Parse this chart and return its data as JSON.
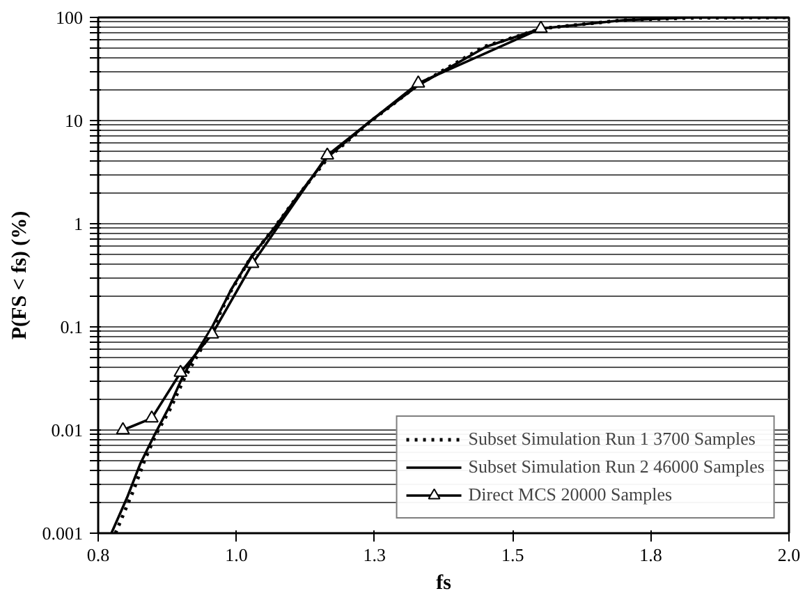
{
  "chart_data": {
    "type": "line",
    "xlabel": "fs",
    "ylabel": "P(FS < fs) (%)",
    "log": "y",
    "grid": "y",
    "legend": "bottom right",
    "xlim": [
      0.8,
      2.0
    ],
    "xticks": [
      {
        "value": 0.8,
        "label": "0.8"
      },
      {
        "value": 1.04,
        "label": "1.0"
      },
      {
        "value": 1.28,
        "label": "1.3"
      },
      {
        "value": 1.52,
        "label": "1.5"
      },
      {
        "value": 1.76,
        "label": "1.8"
      },
      {
        "value": 2.0,
        "label": "2.0"
      }
    ],
    "ylim": [
      0.001,
      100
    ],
    "yticks": [
      0.001,
      {
        "value": 0.002,
        "label": null
      },
      {
        "value": 0.003,
        "label": null
      },
      {
        "value": 0.004,
        "label": null
      },
      {
        "value": 0.005,
        "label": null
      },
      {
        "value": 0.006,
        "label": null
      },
      {
        "value": 0.007,
        "label": null
      },
      {
        "value": 0.008,
        "label": null
      },
      {
        "value": 0.009,
        "label": null
      },
      0.01,
      {
        "value": 0.02,
        "label": null
      },
      {
        "value": 0.03,
        "label": null
      },
      {
        "value": 0.04,
        "label": null
      },
      {
        "value": 0.05,
        "label": null
      },
      {
        "value": 0.06,
        "label": null
      },
      {
        "value": 0.07,
        "label": null
      },
      {
        "value": 0.08,
        "label": null
      },
      {
        "value": 0.09,
        "label": null
      },
      0.1,
      {
        "value": 0.2,
        "label": null
      },
      {
        "value": 0.3,
        "label": null
      },
      {
        "value": 0.4,
        "label": null
      },
      {
        "value": 0.5,
        "label": null
      },
      {
        "value": 0.6,
        "label": null
      },
      {
        "value": 0.7,
        "label": null
      },
      {
        "value": 0.8,
        "label": null
      },
      {
        "value": 0.9,
        "label": null
      },
      1,
      {
        "value": 2,
        "label": null
      },
      {
        "value": 3,
        "label": null
      },
      {
        "value": 4,
        "label": null
      },
      {
        "value": 5,
        "label": null
      },
      {
        "value": 6,
        "label": null
      },
      {
        "value": 7,
        "label": null
      },
      {
        "value": 8,
        "label": null
      },
      {
        "value": 9,
        "label": null
      },
      10,
      {
        "value": 20,
        "label": null
      },
      {
        "value": 30,
        "label": null
      },
      {
        "value": 40,
        "label": null
      },
      {
        "value": 50,
        "label": null
      },
      {
        "value": 60,
        "label": null
      },
      {
        "value": 70,
        "label": null
      },
      {
        "value": 80,
        "label": null
      },
      {
        "value": 90,
        "label": null
      },
      100
    ],
    "series": [
      {
        "name": "Subset Simulation Run 1 3700 Samples",
        "color": "#000000",
        "line_style": "dotted",
        "marker": "none",
        "x": [
          0.83,
          0.86,
          0.88,
          0.9,
          0.925,
          0.95,
          0.975,
          1.0,
          1.03,
          1.065,
          1.105,
          1.148,
          1.2,
          1.275,
          1.355,
          1.47,
          1.57,
          1.71,
          1.83,
          2.0
        ],
        "values": [
          0.001,
          0.0025,
          0.005,
          0.009,
          0.016,
          0.032,
          0.056,
          0.1,
          0.22,
          0.47,
          0.9,
          1.9,
          4.4,
          10,
          22,
          52,
          78,
          94,
          99,
          100
        ]
      },
      {
        "name": "Subset Simulation Run 2 46000 Samples",
        "color": "#000000",
        "line_style": "solid",
        "marker": "none",
        "x": [
          0.823,
          0.85,
          0.873,
          0.898,
          0.923,
          0.948,
          0.973,
          0.998,
          1.031,
          1.066,
          1.106,
          1.148,
          1.198,
          1.274,
          1.356,
          1.474,
          1.569,
          1.712,
          1.83,
          2.0
        ],
        "values": [
          0.001,
          0.0022,
          0.0047,
          0.009,
          0.0166,
          0.034,
          0.059,
          0.1,
          0.23,
          0.48,
          0.91,
          1.9,
          4.4,
          10,
          22,
          52,
          78,
          94,
          100,
          100
        ]
      },
      {
        "name": "Direct MCS 20000 Samples",
        "color": "#000000",
        "line_style": "solid",
        "marker": "triangle",
        "x": [
          0.843,
          0.893,
          0.943,
          0.998,
          1.068,
          1.198,
          1.356,
          1.569
        ],
        "values": [
          0.01,
          0.013,
          0.036,
          0.085,
          0.41,
          4.6,
          23,
          78
        ]
      }
    ]
  }
}
